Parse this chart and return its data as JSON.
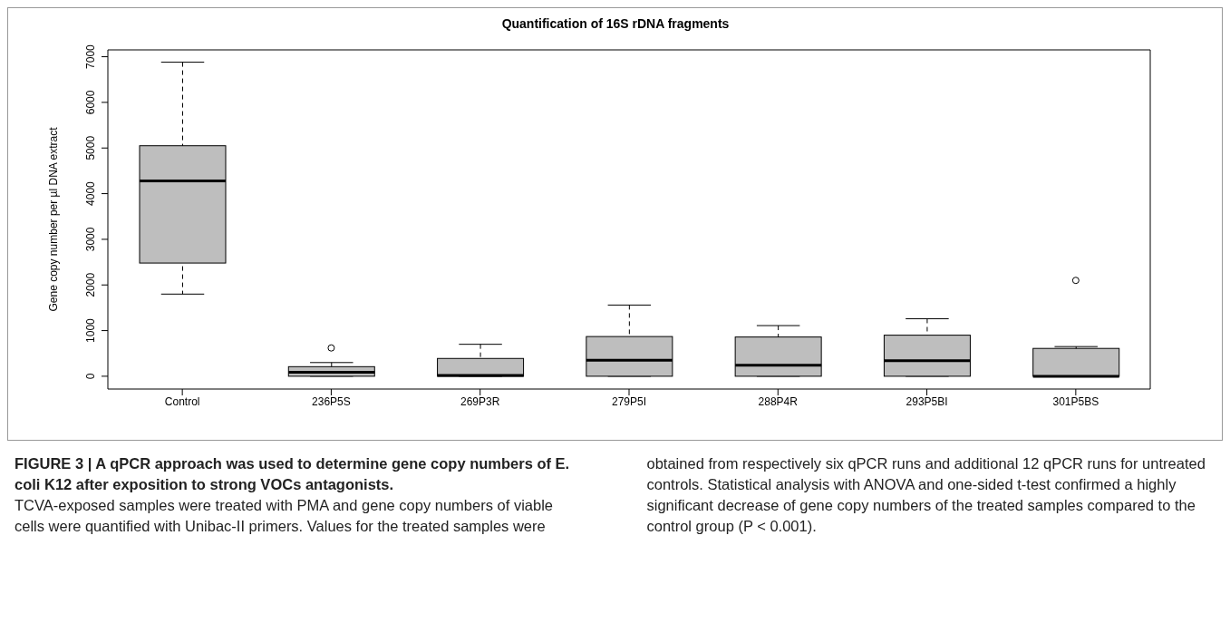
{
  "chart_data": {
    "type": "box",
    "title": "Quantification of 16S rDNA fragments",
    "ylabel": "Gene copy number per µl DNA extract",
    "categories": [
      "Control",
      "236P5S",
      "269P3R",
      "279P5I",
      "288P4R",
      "293P5BI",
      "301P5BS"
    ],
    "color": "#bebebe",
    "boxes": [
      {
        "low": 1800,
        "q1": 2480,
        "median": 4280,
        "q3": 5050,
        "high": 6880
      },
      {
        "low": 0,
        "q1": 0,
        "median": 90,
        "q3": 210,
        "high": 300,
        "outliers": [
          620
        ]
      },
      {
        "low": 0,
        "q1": 0,
        "median": 20,
        "q3": 390,
        "high": 700
      },
      {
        "low": 0,
        "q1": 0,
        "median": 350,
        "q3": 870,
        "high": 1560
      },
      {
        "low": 0,
        "q1": 0,
        "median": 240,
        "q3": 860,
        "high": 1110
      },
      {
        "low": 0,
        "q1": 0,
        "median": 340,
        "q3": 900,
        "high": 1260
      },
      {
        "low": 0,
        "q1": 0,
        "median": 0,
        "q3": 610,
        "high": 650,
        "outliers": [
          2100
        ]
      }
    ],
    "ylim": [
      -280,
      7150
    ],
    "yticks": [
      0,
      1000,
      2000,
      3000,
      4000,
      5000,
      6000,
      7000
    ],
    "grid": false,
    "annotations": [
      "FIGURE 3 | A qPCR approach was used to determine gene copy numbers of E. coli K12 after exposition to strong VOCs antagonists.",
      "TCVA-exposed samples were treated with PMA and gene copy numbers of viable cells were quantified with Unibac-II primers. Values for the treated samples were obtained from respectively six qPCR runs and additional 12 qPCR runs for untreated controls. Statistical analysis with ANOVA and one-sided t-test confirmed a highly significant decrease of gene copy numbers of the treated samples compared to the control group (P < 0.001)."
    ]
  }
}
